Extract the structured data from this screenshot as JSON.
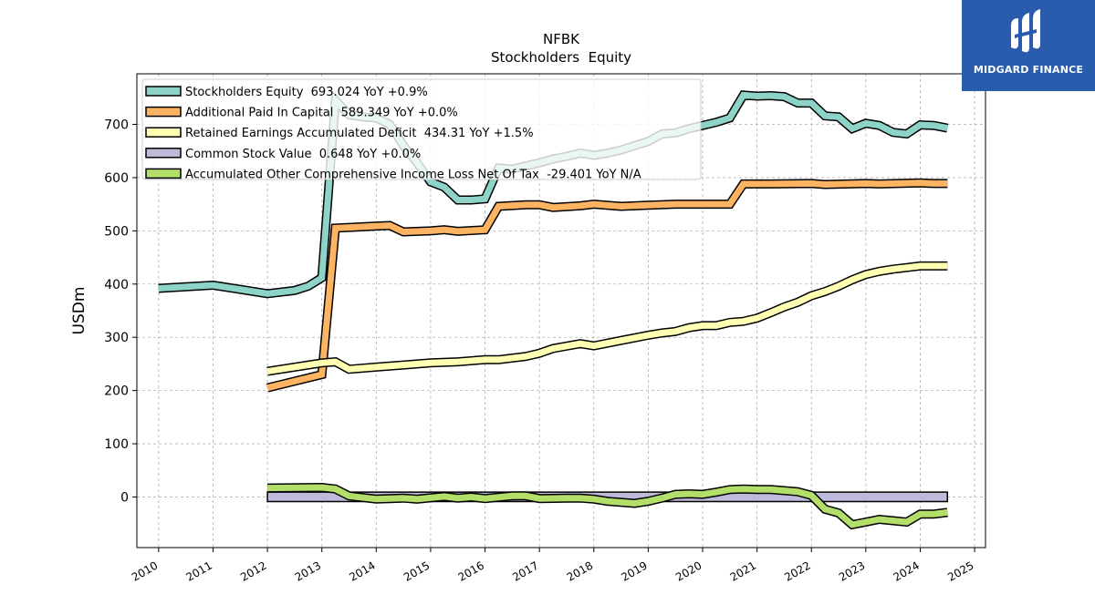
{
  "brand": {
    "name": "MIDGARD FINANCE",
    "icon": "midgard-logo-icon"
  },
  "chart_data": {
    "type": "line",
    "title": "NFBK",
    "subtitle": "Stockholders  Equity",
    "xlabel": "",
    "ylabel": "USDm",
    "xlim": [
      2009.6,
      2025.2
    ],
    "ylim": [
      -95,
      795
    ],
    "x_ticks": [
      "2010",
      "2011",
      "2012",
      "2013",
      "2014",
      "2015",
      "2016",
      "2017",
      "2018",
      "2019",
      "2020",
      "2021",
      "2022",
      "2023",
      "2024",
      "2025"
    ],
    "y_ticks": [
      "0",
      "100",
      "200",
      "300",
      "400",
      "500",
      "600",
      "700"
    ],
    "grid": true,
    "legend_position": "top-left",
    "series": [
      {
        "name": "Stockholders Equity  693.024 YoY +0.9%",
        "color": "#8dd3c7",
        "points": [
          [
            2010.0,
            392
          ],
          [
            2011.0,
            398
          ],
          [
            2012.0,
            382
          ],
          [
            2012.5,
            388
          ],
          [
            2012.75,
            396
          ],
          [
            2013.0,
            412
          ],
          [
            2013.25,
            745
          ],
          [
            2013.5,
            718
          ],
          [
            2013.75,
            714
          ],
          [
            2014.0,
            712
          ],
          [
            2014.25,
            700
          ],
          [
            2014.5,
            660
          ],
          [
            2014.75,
            628
          ],
          [
            2015.0,
            592
          ],
          [
            2015.25,
            582
          ],
          [
            2015.5,
            558
          ],
          [
            2015.75,
            558
          ],
          [
            2016.0,
            560
          ],
          [
            2016.25,
            618
          ],
          [
            2016.5,
            616
          ],
          [
            2016.75,
            622
          ],
          [
            2017.0,
            628
          ],
          [
            2017.25,
            635
          ],
          [
            2017.5,
            640
          ],
          [
            2017.75,
            646
          ],
          [
            2018.0,
            642
          ],
          [
            2018.25,
            646
          ],
          [
            2018.5,
            652
          ],
          [
            2018.75,
            660
          ],
          [
            2019.0,
            668
          ],
          [
            2019.25,
            682
          ],
          [
            2019.5,
            684
          ],
          [
            2019.75,
            692
          ],
          [
            2020.0,
            698
          ],
          [
            2020.25,
            704
          ],
          [
            2020.5,
            712
          ],
          [
            2020.75,
            755
          ],
          [
            2021.0,
            753
          ],
          [
            2021.25,
            754
          ],
          [
            2021.5,
            752
          ],
          [
            2021.75,
            740
          ],
          [
            2022.0,
            740
          ],
          [
            2022.25,
            716
          ],
          [
            2022.5,
            714
          ],
          [
            2022.75,
            692
          ],
          [
            2023.0,
            702
          ],
          [
            2023.25,
            698
          ],
          [
            2023.5,
            685
          ],
          [
            2023.75,
            682
          ],
          [
            2024.0,
            699
          ],
          [
            2024.25,
            698
          ],
          [
            2024.5,
            693
          ]
        ]
      },
      {
        "name": "Additional Paid In Capital  589.349 YoY +0.0%",
        "color": "#fdb462",
        "points": [
          [
            2012.0,
            205
          ],
          [
            2013.0,
            230
          ],
          [
            2013.25,
            505
          ],
          [
            2014.0,
            509
          ],
          [
            2014.25,
            510
          ],
          [
            2014.5,
            498
          ],
          [
            2015.0,
            500
          ],
          [
            2015.25,
            502
          ],
          [
            2015.5,
            499
          ],
          [
            2016.0,
            502
          ],
          [
            2016.25,
            546
          ],
          [
            2016.75,
            549
          ],
          [
            2017.0,
            549
          ],
          [
            2017.25,
            544
          ],
          [
            2017.75,
            547
          ],
          [
            2018.0,
            550
          ],
          [
            2018.5,
            546
          ],
          [
            2019.0,
            548
          ],
          [
            2019.5,
            550
          ],
          [
            2020.0,
            550
          ],
          [
            2020.5,
            550
          ],
          [
            2020.75,
            588
          ],
          [
            2021.25,
            588
          ],
          [
            2022.0,
            589
          ],
          [
            2022.25,
            587
          ],
          [
            2023.0,
            589
          ],
          [
            2023.25,
            588
          ],
          [
            2024.0,
            590
          ],
          [
            2024.25,
            589
          ],
          [
            2024.5,
            589
          ]
        ]
      },
      {
        "name": "Retained Earnings Accumulated Deficit  434.31 YoY +1.5%",
        "color": "#ffffb3",
        "points": [
          [
            2012.0,
            236
          ],
          [
            2013.0,
            252
          ],
          [
            2013.25,
            254
          ],
          [
            2013.5,
            240
          ],
          [
            2014.0,
            244
          ],
          [
            2014.5,
            248
          ],
          [
            2015.0,
            252
          ],
          [
            2015.5,
            254
          ],
          [
            2016.0,
            258
          ],
          [
            2016.25,
            258
          ],
          [
            2016.75,
            264
          ],
          [
            2017.0,
            270
          ],
          [
            2017.25,
            279
          ],
          [
            2017.75,
            288
          ],
          [
            2018.0,
            284
          ],
          [
            2018.5,
            294
          ],
          [
            2019.0,
            304
          ],
          [
            2019.25,
            308
          ],
          [
            2019.5,
            311
          ],
          [
            2019.75,
            318
          ],
          [
            2020.0,
            322
          ],
          [
            2020.25,
            322
          ],
          [
            2020.5,
            328
          ],
          [
            2020.75,
            330
          ],
          [
            2021.0,
            336
          ],
          [
            2021.25,
            346
          ],
          [
            2021.5,
            357
          ],
          [
            2021.75,
            366
          ],
          [
            2022.0,
            378
          ],
          [
            2022.25,
            386
          ],
          [
            2022.5,
            396
          ],
          [
            2022.75,
            408
          ],
          [
            2023.0,
            418
          ],
          [
            2023.25,
            424
          ],
          [
            2023.5,
            428
          ],
          [
            2023.75,
            431
          ],
          [
            2024.0,
            434
          ],
          [
            2024.25,
            434
          ],
          [
            2024.5,
            434
          ]
        ]
      },
      {
        "name": "Common Stock Value  0.648 YoY +0.0%",
        "color": "#bebada",
        "points": [
          [
            2012.0,
            0.648
          ],
          [
            2024.5,
            0.648
          ]
        ],
        "fill_to_zero": true
      },
      {
        "name": "Accumulated Other Comprehensive Income Loss Net Of Tax  -29.401 YoY N/A",
        "color": "#b3de69",
        "points": [
          [
            2012.0,
            17
          ],
          [
            2013.0,
            18
          ],
          [
            2013.25,
            15
          ],
          [
            2013.5,
            2
          ],
          [
            2014.0,
            -4
          ],
          [
            2014.5,
            -2
          ],
          [
            2014.75,
            -4
          ],
          [
            2015.25,
            1
          ],
          [
            2015.5,
            -2
          ],
          [
            2015.75,
            0
          ],
          [
            2016.0,
            -3
          ],
          [
            2016.5,
            2
          ],
          [
            2016.75,
            2
          ],
          [
            2017.0,
            -3
          ],
          [
            2017.5,
            -2
          ],
          [
            2017.75,
            -2
          ],
          [
            2018.0,
            -4
          ],
          [
            2018.25,
            -8
          ],
          [
            2018.75,
            -12
          ],
          [
            2019.0,
            -8
          ],
          [
            2019.25,
            -2
          ],
          [
            2019.5,
            5
          ],
          [
            2019.75,
            6
          ],
          [
            2020.0,
            5
          ],
          [
            2020.25,
            9
          ],
          [
            2020.5,
            14
          ],
          [
            2020.75,
            15
          ],
          [
            2021.0,
            14
          ],
          [
            2021.25,
            14
          ],
          [
            2021.75,
            10
          ],
          [
            2022.0,
            3
          ],
          [
            2022.25,
            -23
          ],
          [
            2022.5,
            -30
          ],
          [
            2022.75,
            -52
          ],
          [
            2023.0,
            -47
          ],
          [
            2023.25,
            -42
          ],
          [
            2023.75,
            -47
          ],
          [
            2024.0,
            -32
          ],
          [
            2024.25,
            -32
          ],
          [
            2024.5,
            -29
          ]
        ]
      }
    ]
  }
}
